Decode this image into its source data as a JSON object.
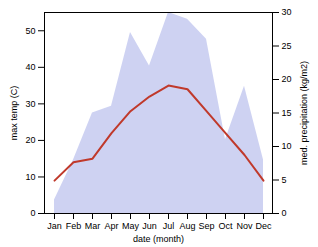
{
  "chart_data": {
    "type": "line",
    "xlabel": "date (month)",
    "ylabel": "max temp (C)",
    "y2label": "med. precipitation (kg/m2)",
    "categories": [
      "Jan",
      "Feb",
      "Mar",
      "Apr",
      "May",
      "Jun",
      "Jul",
      "Aug",
      "Sep",
      "Oct",
      "Nov",
      "Dec"
    ],
    "series": [
      {
        "type": "area",
        "axis": "y2",
        "color": "#c5caf0",
        "values": [
          2,
          8,
          15,
          16,
          27,
          22,
          30,
          29,
          26,
          11,
          19,
          8
        ]
      },
      {
        "type": "line",
        "color": "#c0392b",
        "values": [
          9,
          14,
          15,
          22,
          28,
          32,
          35,
          34,
          28,
          22,
          16,
          9
        ]
      }
    ],
    "ylim": [
      0,
      55
    ],
    "yticks": [
      0,
      10,
      20,
      30,
      40,
      50
    ],
    "y2lim": [
      0,
      30
    ],
    "y2ticks": [
      0,
      5,
      10,
      15,
      20,
      25,
      30
    ],
    "grid": false
  }
}
